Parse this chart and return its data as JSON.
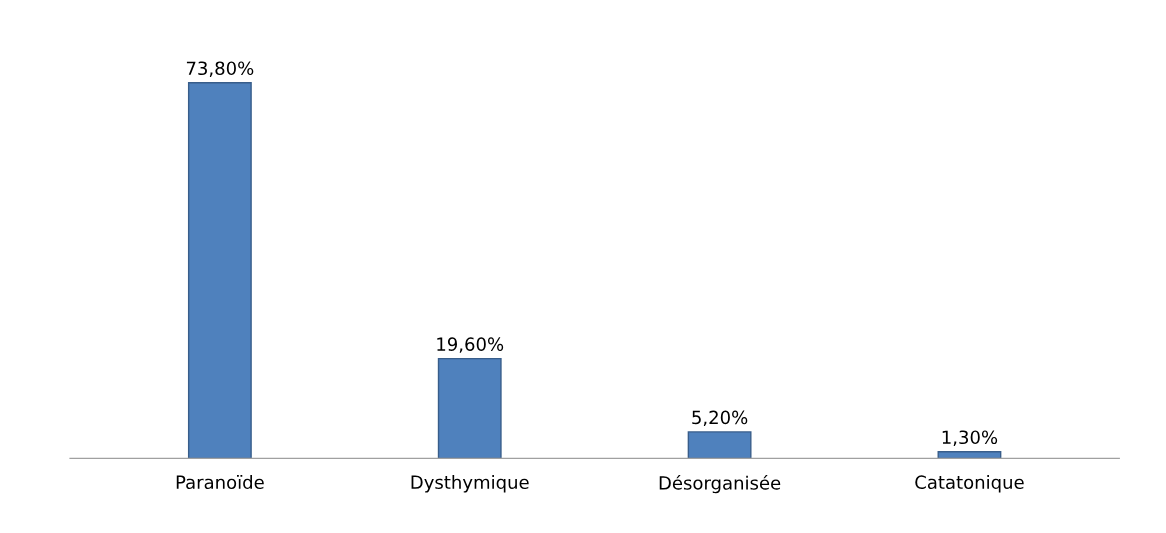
{
  "chart_data": {
    "type": "bar",
    "categories": [
      "Paranoïde",
      "Dysthymique",
      "Désorganisée",
      "Catatonique"
    ],
    "values": [
      73.8,
      19.6,
      5.2,
      1.3
    ],
    "value_labels": [
      "73,80%",
      "19,60%",
      "5,20%",
      "1,30%"
    ],
    "color": "#4f81bd"
  }
}
